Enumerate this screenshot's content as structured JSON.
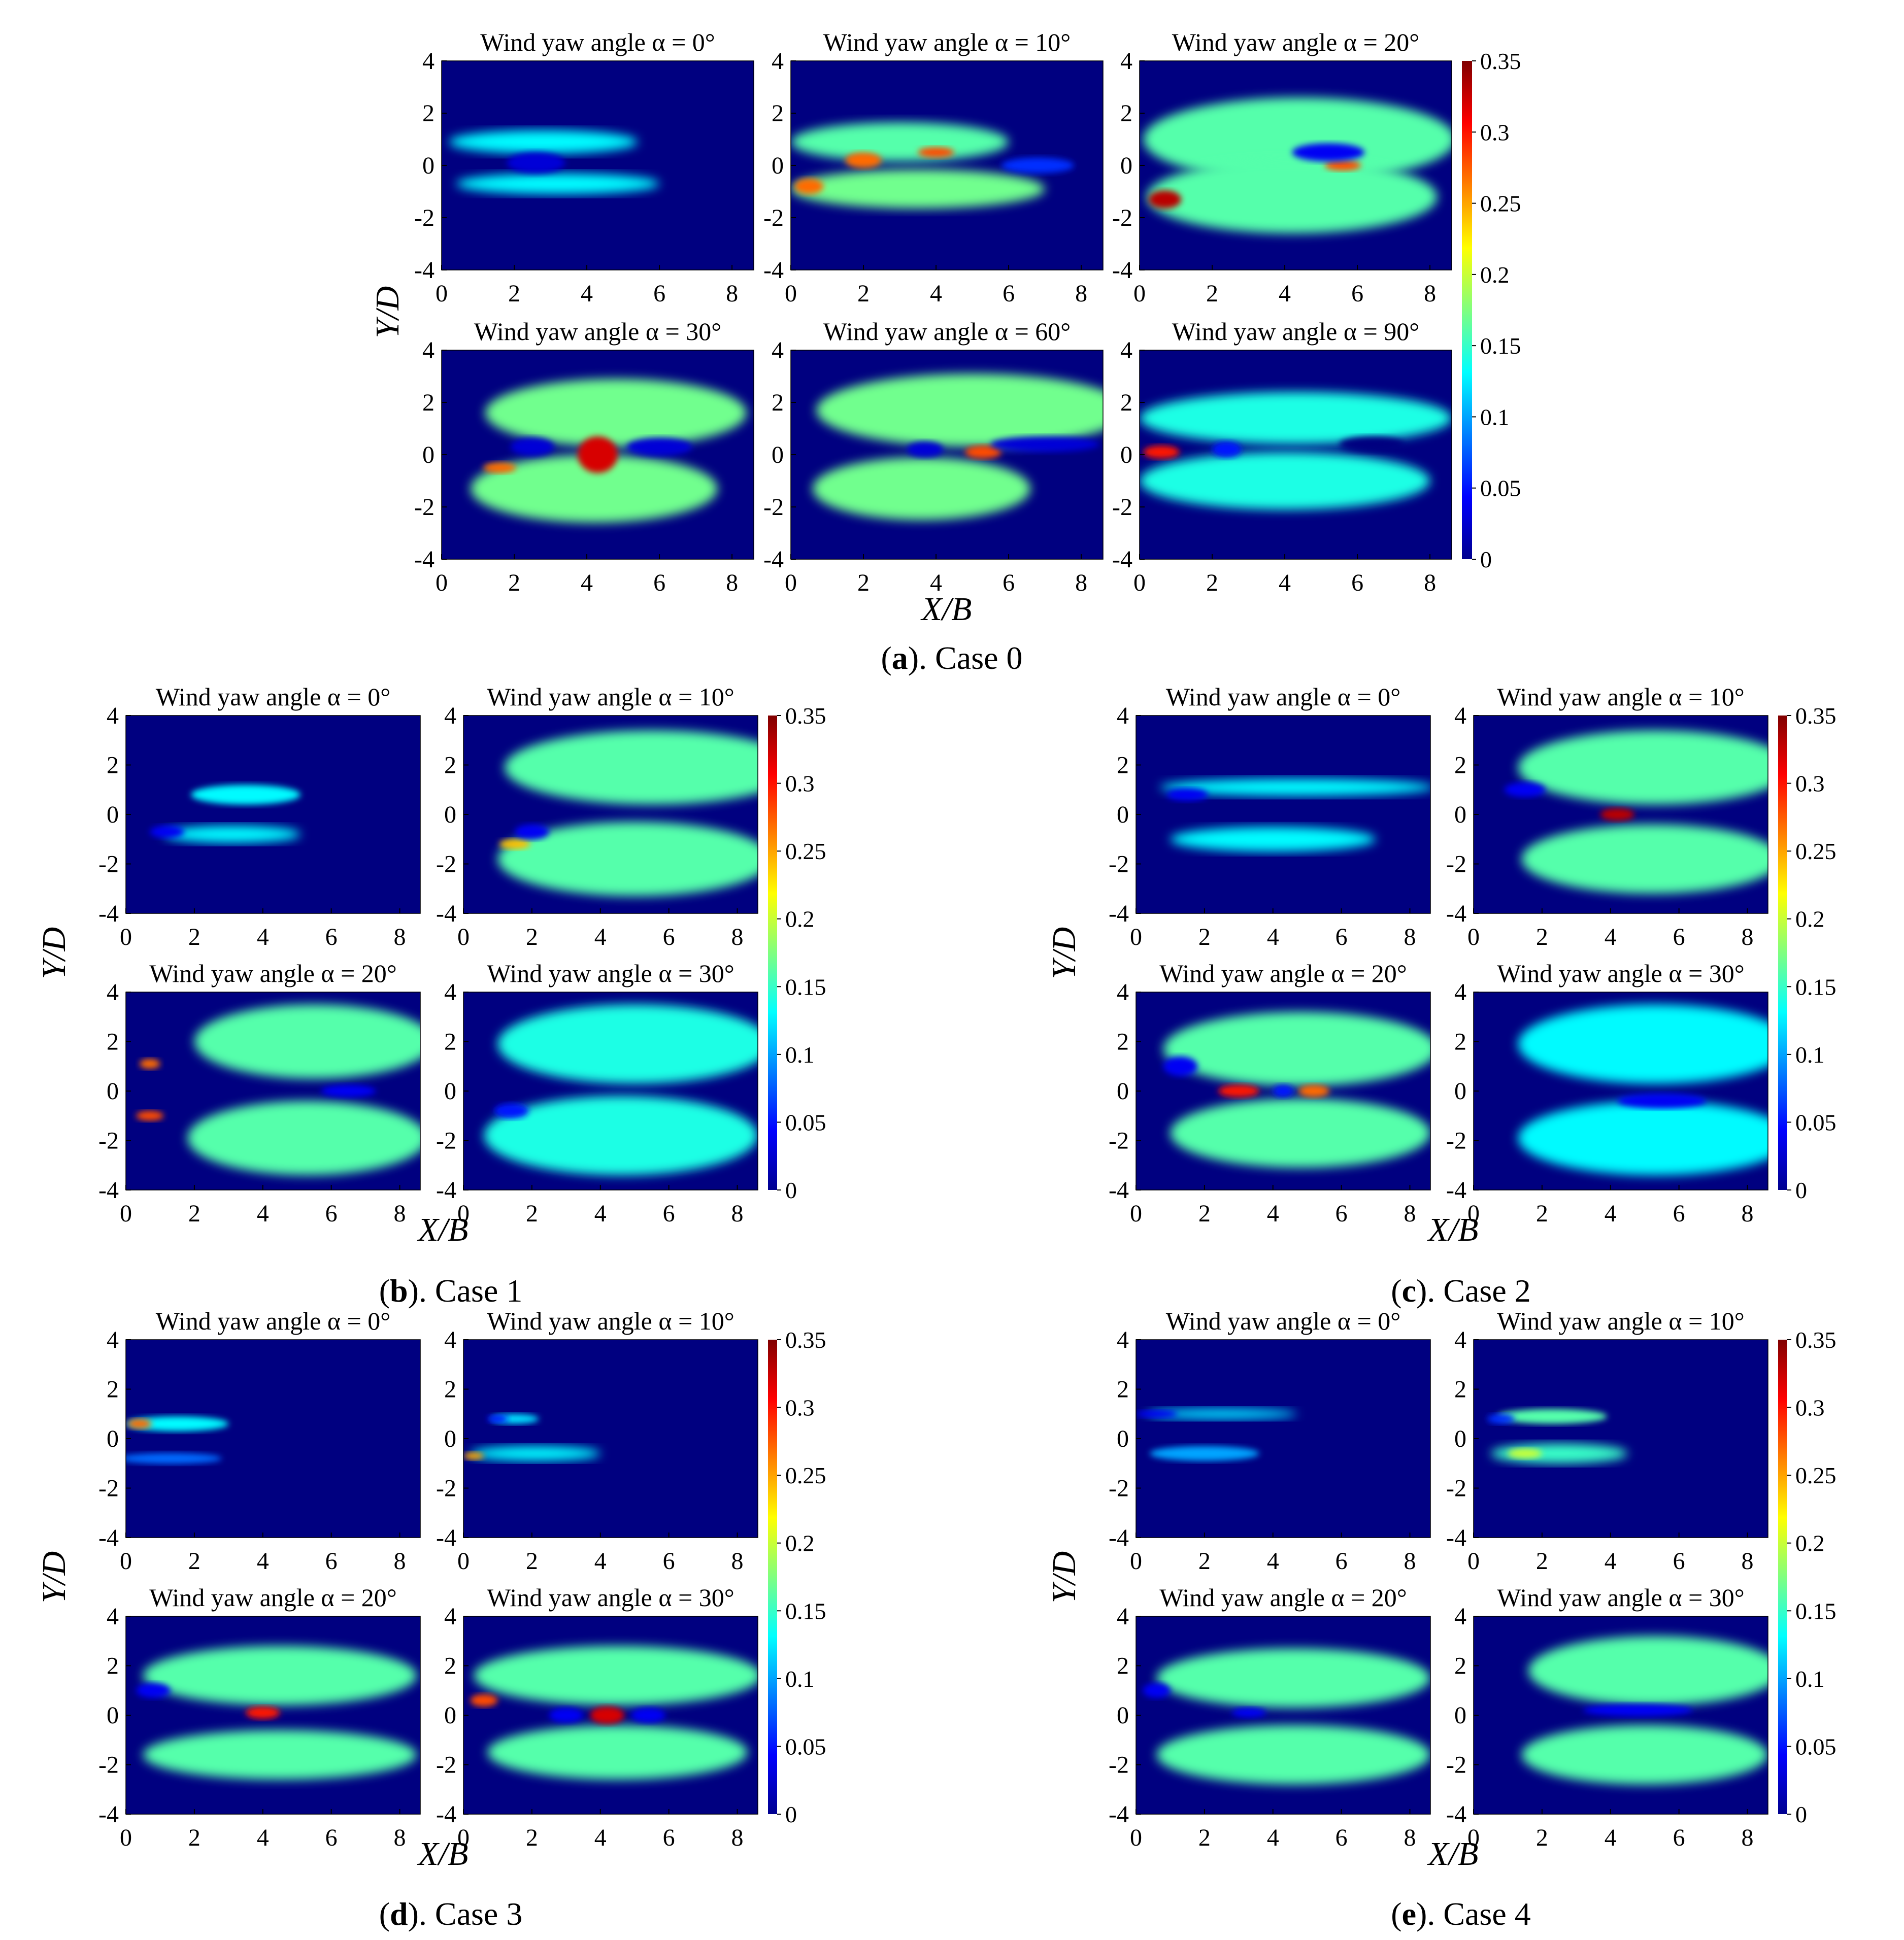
{
  "chart_data": {
    "type": "heatmap",
    "colormap": "jet",
    "value_range": [
      0,
      0.35
    ],
    "colorbar_ticks": [
      "0.35",
      "0.3",
      "0.25",
      "0.2",
      "0.15",
      "0.1",
      "0.05",
      "0"
    ],
    "panel_title_template": "Wind yaw angle α = {angle}°",
    "x_label": "X/B",
    "y_label": "Y/D",
    "xlim": [
      0,
      8.6
    ],
    "ylim": [
      -4,
      4
    ],
    "x_ticks": [
      "0",
      "2",
      "4",
      "6",
      "8"
    ],
    "y_ticks": [
      "4",
      "2",
      "0",
      "-2",
      "-4"
    ],
    "background_value": 0,
    "groups": [
      {
        "letter": "a",
        "caption_rest": "). Case 0",
        "panels": [
          {
            "angle": "0",
            "title": "Wind yaw angle α = 0°",
            "blobs": [
              {
                "x": 2.8,
                "y": 0.9,
                "rx": 2.6,
                "ry": 0.45,
                "v": 0.13
              },
              {
                "x": 3.2,
                "y": -0.7,
                "rx": 2.8,
                "ry": 0.4,
                "v": 0.13
              },
              {
                "x": 2.6,
                "y": 0.1,
                "rx": 0.8,
                "ry": 0.4,
                "v": 0.03
              }
            ]
          },
          {
            "angle": "10",
            "title": "Wind yaw angle α = 10°",
            "blobs": [
              {
                "x": 3.0,
                "y": 0.9,
                "rx": 3.0,
                "ry": 0.75,
                "v": 0.16
              },
              {
                "x": 3.5,
                "y": -0.9,
                "rx": 3.5,
                "ry": 0.75,
                "v": 0.17
              },
              {
                "x": 2.0,
                "y": 0.2,
                "rx": 0.5,
                "ry": 0.3,
                "v": 0.27
              },
              {
                "x": 4.0,
                "y": 0.5,
                "rx": 0.5,
                "ry": 0.2,
                "v": 0.28
              },
              {
                "x": 0.5,
                "y": -0.8,
                "rx": 0.4,
                "ry": 0.3,
                "v": 0.27
              },
              {
                "x": 6.8,
                "y": 0.0,
                "rx": 1.0,
                "ry": 0.3,
                "v": 0.06
              }
            ]
          },
          {
            "angle": "20",
            "title": "Wind yaw angle α = 20°",
            "blobs": [
              {
                "x": 4.4,
                "y": 1.0,
                "rx": 4.3,
                "ry": 1.6,
                "v": 0.16
              },
              {
                "x": 4.2,
                "y": -1.2,
                "rx": 4.0,
                "ry": 1.4,
                "v": 0.16
              },
              {
                "x": 0.7,
                "y": -1.3,
                "rx": 0.45,
                "ry": 0.35,
                "v": 0.33
              },
              {
                "x": 5.6,
                "y": 0.0,
                "rx": 0.5,
                "ry": 0.2,
                "v": 0.28
              },
              {
                "x": 5.2,
                "y": 0.5,
                "rx": 1.0,
                "ry": 0.35,
                "v": 0.04
              }
            ]
          },
          {
            "angle": "30",
            "title": "Wind yaw angle α = 30°",
            "blobs": [
              {
                "x": 4.8,
                "y": 1.6,
                "rx": 3.6,
                "ry": 1.3,
                "v": 0.17
              },
              {
                "x": 4.2,
                "y": -1.3,
                "rx": 3.4,
                "ry": 1.3,
                "v": 0.17
              },
              {
                "x": 4.3,
                "y": 0.0,
                "rx": 0.55,
                "ry": 0.7,
                "v": 0.32
              },
              {
                "x": 1.6,
                "y": -0.5,
                "rx": 0.45,
                "ry": 0.2,
                "v": 0.27
              },
              {
                "x": 2.5,
                "y": 0.3,
                "rx": 0.6,
                "ry": 0.35,
                "v": 0.03
              },
              {
                "x": 6.0,
                "y": 0.3,
                "rx": 0.9,
                "ry": 0.35,
                "v": 0.03
              }
            ]
          },
          {
            "angle": "60",
            "title": "Wind yaw angle α = 60°",
            "blobs": [
              {
                "x": 5.0,
                "y": 1.7,
                "rx": 4.3,
                "ry": 1.4,
                "v": 0.17
              },
              {
                "x": 3.6,
                "y": -1.3,
                "rx": 3.0,
                "ry": 1.2,
                "v": 0.17
              },
              {
                "x": 5.3,
                "y": 0.1,
                "rx": 0.5,
                "ry": 0.25,
                "v": 0.28
              },
              {
                "x": 3.7,
                "y": 0.2,
                "rx": 0.5,
                "ry": 0.3,
                "v": 0.03
              },
              {
                "x": 7.0,
                "y": 0.4,
                "rx": 1.5,
                "ry": 0.3,
                "v": 0.03
              }
            ]
          },
          {
            "angle": "90",
            "title": "Wind yaw angle α = 90°",
            "blobs": [
              {
                "x": 4.3,
                "y": 1.4,
                "rx": 4.3,
                "ry": 1.0,
                "v": 0.14
              },
              {
                "x": 4.0,
                "y": -1.0,
                "rx": 4.0,
                "ry": 1.1,
                "v": 0.14
              },
              {
                "x": 0.6,
                "y": 0.1,
                "rx": 0.5,
                "ry": 0.25,
                "v": 0.3
              },
              {
                "x": 2.4,
                "y": 0.2,
                "rx": 0.4,
                "ry": 0.3,
                "v": 0.05
              },
              {
                "x": 6.4,
                "y": 0.4,
                "rx": 0.9,
                "ry": 0.3,
                "v": 0.0
              }
            ]
          }
        ]
      },
      {
        "letter": "b",
        "caption_rest": "). Case 1",
        "panels": [
          {
            "angle": "0",
            "title": "Wind yaw angle α = 0°",
            "blobs": [
              {
                "x": 3.5,
                "y": 0.8,
                "rx": 1.6,
                "ry": 0.4,
                "v": 0.13
              },
              {
                "x": 3.1,
                "y": -0.8,
                "rx": 2.0,
                "ry": 0.35,
                "v": 0.13
              },
              {
                "x": 1.2,
                "y": -0.7,
                "rx": 0.5,
                "ry": 0.25,
                "v": 0.04
              }
            ]
          },
          {
            "angle": "10",
            "title": "Wind yaw angle α = 10°",
            "blobs": [
              {
                "x": 5.5,
                "y": 1.9,
                "rx": 4.3,
                "ry": 1.5,
                "v": 0.16
              },
              {
                "x": 5.0,
                "y": -1.8,
                "rx": 4.0,
                "ry": 1.5,
                "v": 0.16
              },
              {
                "x": 1.5,
                "y": -1.2,
                "rx": 0.45,
                "ry": 0.2,
                "v": 0.24
              },
              {
                "x": 2.0,
                "y": -0.7,
                "rx": 0.5,
                "ry": 0.3,
                "v": 0.04
              }
            ]
          },
          {
            "angle": "20",
            "title": "Wind yaw angle α = 20°",
            "blobs": [
              {
                "x": 5.5,
                "y": 2.0,
                "rx": 3.5,
                "ry": 1.5,
                "v": 0.16
              },
              {
                "x": 5.3,
                "y": -1.9,
                "rx": 3.5,
                "ry": 1.5,
                "v": 0.16
              },
              {
                "x": 0.7,
                "y": 1.1,
                "rx": 0.3,
                "ry": 0.2,
                "v": 0.27
              },
              {
                "x": 0.7,
                "y": -1.0,
                "rx": 0.4,
                "ry": 0.2,
                "v": 0.28
              },
              {
                "x": 6.5,
                "y": 0.0,
                "rx": 0.8,
                "ry": 0.25,
                "v": 0.04
              }
            ]
          },
          {
            "angle": "30",
            "title": "Wind yaw angle α = 30°",
            "blobs": [
              {
                "x": 5.0,
                "y": 1.9,
                "rx": 4.0,
                "ry": 1.6,
                "v": 0.14
              },
              {
                "x": 4.6,
                "y": -1.8,
                "rx": 4.0,
                "ry": 1.6,
                "v": 0.14
              },
              {
                "x": 1.4,
                "y": -0.8,
                "rx": 0.5,
                "ry": 0.3,
                "v": 0.05
              }
            ]
          }
        ]
      },
      {
        "letter": "c",
        "caption_rest": "). Case 2",
        "panels": [
          {
            "angle": "0",
            "title": "Wind yaw angle α = 0°",
            "blobs": [
              {
                "x": 4.7,
                "y": 1.1,
                "rx": 4.0,
                "ry": 0.35,
                "v": 0.13
              },
              {
                "x": 4.0,
                "y": -1.0,
                "rx": 3.0,
                "ry": 0.5,
                "v": 0.13
              },
              {
                "x": 1.5,
                "y": 0.8,
                "rx": 0.6,
                "ry": 0.25,
                "v": 0.04
              }
            ]
          },
          {
            "angle": "10",
            "title": "Wind yaw angle α = 10°",
            "blobs": [
              {
                "x": 5.3,
                "y": 1.9,
                "rx": 4.0,
                "ry": 1.5,
                "v": 0.16
              },
              {
                "x": 5.2,
                "y": -1.8,
                "rx": 3.8,
                "ry": 1.4,
                "v": 0.16
              },
              {
                "x": 4.2,
                "y": 0.0,
                "rx": 0.5,
                "ry": 0.25,
                "v": 0.33
              },
              {
                "x": 1.5,
                "y": 1.0,
                "rx": 0.6,
                "ry": 0.3,
                "v": 0.04
              }
            ]
          },
          {
            "angle": "20",
            "title": "Wind yaw angle α = 20°",
            "blobs": [
              {
                "x": 4.8,
                "y": 1.7,
                "rx": 4.0,
                "ry": 1.5,
                "v": 0.16
              },
              {
                "x": 4.8,
                "y": -1.7,
                "rx": 3.8,
                "ry": 1.4,
                "v": 0.16
              },
              {
                "x": 3.0,
                "y": 0.0,
                "rx": 0.6,
                "ry": 0.25,
                "v": 0.3
              },
              {
                "x": 5.2,
                "y": 0.0,
                "rx": 0.45,
                "ry": 0.25,
                "v": 0.27
              },
              {
                "x": 4.3,
                "y": 0.0,
                "rx": 0.3,
                "ry": 0.25,
                "v": 0.05
              },
              {
                "x": 1.3,
                "y": 1.0,
                "rx": 0.5,
                "ry": 0.4,
                "v": 0.04
              }
            ]
          },
          {
            "angle": "30",
            "title": "Wind yaw angle α = 30°",
            "blobs": [
              {
                "x": 5.3,
                "y": 1.9,
                "rx": 4.0,
                "ry": 1.6,
                "v": 0.13
              },
              {
                "x": 5.3,
                "y": -1.9,
                "rx": 4.0,
                "ry": 1.5,
                "v": 0.13
              },
              {
                "x": 5.5,
                "y": -0.4,
                "rx": 1.3,
                "ry": 0.3,
                "v": 0.04
              }
            ]
          }
        ]
      },
      {
        "letter": "d",
        "caption_rest": "). Case 3",
        "panels": [
          {
            "angle": "0",
            "title": "Wind yaw angle α = 0°",
            "blobs": [
              {
                "x": 1.5,
                "y": 0.6,
                "rx": 1.5,
                "ry": 0.3,
                "v": 0.13
              },
              {
                "x": 1.3,
                "y": -0.8,
                "rx": 1.5,
                "ry": 0.22,
                "v": 0.08
              },
              {
                "x": 0.4,
                "y": 0.6,
                "rx": 0.35,
                "ry": 0.2,
                "v": 0.27
              }
            ]
          },
          {
            "angle": "10",
            "title": "Wind yaw angle α = 10°",
            "blobs": [
              {
                "x": 1.5,
                "y": 0.8,
                "rx": 0.7,
                "ry": 0.2,
                "v": 0.12
              },
              {
                "x": 2.1,
                "y": -0.6,
                "rx": 1.9,
                "ry": 0.3,
                "v": 0.13
              },
              {
                "x": 0.3,
                "y": -0.7,
                "rx": 0.3,
                "ry": 0.15,
                "v": 0.25
              },
              {
                "x": 1.0,
                "y": 0.8,
                "rx": 0.3,
                "ry": 0.15,
                "v": 0.05
              }
            ]
          },
          {
            "angle": "20",
            "title": "Wind yaw angle α = 20°",
            "blobs": [
              {
                "x": 4.5,
                "y": 1.6,
                "rx": 4.0,
                "ry": 1.2,
                "v": 0.16
              },
              {
                "x": 4.5,
                "y": -1.6,
                "rx": 4.0,
                "ry": 1.0,
                "v": 0.16
              },
              {
                "x": 4.0,
                "y": 0.1,
                "rx": 0.5,
                "ry": 0.25,
                "v": 0.3
              },
              {
                "x": 0.8,
                "y": 1.0,
                "rx": 0.5,
                "ry": 0.3,
                "v": 0.04
              }
            ]
          },
          {
            "angle": "30",
            "title": "Wind yaw angle α = 30°",
            "blobs": [
              {
                "x": 4.5,
                "y": 1.6,
                "rx": 4.2,
                "ry": 1.2,
                "v": 0.16
              },
              {
                "x": 4.5,
                "y": -1.5,
                "rx": 3.8,
                "ry": 1.1,
                "v": 0.16
              },
              {
                "x": 4.2,
                "y": 0.0,
                "rx": 0.5,
                "ry": 0.35,
                "v": 0.32
              },
              {
                "x": 0.6,
                "y": 0.6,
                "rx": 0.4,
                "ry": 0.25,
                "v": 0.28
              },
              {
                "x": 3.0,
                "y": 0.0,
                "rx": 0.5,
                "ry": 0.3,
                "v": 0.04
              },
              {
                "x": 5.4,
                "y": 0.0,
                "rx": 0.5,
                "ry": 0.3,
                "v": 0.04
              }
            ]
          }
        ]
      },
      {
        "letter": "e",
        "caption_rest": "). Case 4",
        "panels": [
          {
            "angle": "0",
            "title": "Wind yaw angle α = 0°",
            "blobs": [
              {
                "x": 2.5,
                "y": 1.0,
                "rx": 2.2,
                "ry": 0.22,
                "v": 0.12
              },
              {
                "x": 2.0,
                "y": -0.6,
                "rx": 1.6,
                "ry": 0.3,
                "v": 0.1
              },
              {
                "x": 0.6,
                "y": 1.0,
                "rx": 0.6,
                "ry": 0.15,
                "v": 0.04
              }
            ]
          },
          {
            "angle": "10",
            "title": "Wind yaw angle α = 10°",
            "blobs": [
              {
                "x": 2.3,
                "y": 0.9,
                "rx": 1.6,
                "ry": 0.3,
                "v": 0.16
              },
              {
                "x": 2.5,
                "y": -0.6,
                "rx": 2.0,
                "ry": 0.4,
                "v": 0.15
              },
              {
                "x": 1.5,
                "y": -0.6,
                "rx": 0.5,
                "ry": 0.2,
                "v": 0.2
              },
              {
                "x": 0.8,
                "y": 0.8,
                "rx": 0.4,
                "ry": 0.2,
                "v": 0.06
              }
            ]
          },
          {
            "angle": "20",
            "title": "Wind yaw angle α = 20°",
            "blobs": [
              {
                "x": 4.6,
                "y": 1.5,
                "rx": 4.0,
                "ry": 1.2,
                "v": 0.16
              },
              {
                "x": 4.6,
                "y": -1.6,
                "rx": 4.0,
                "ry": 1.2,
                "v": 0.16
              },
              {
                "x": 3.3,
                "y": 0.1,
                "rx": 0.5,
                "ry": 0.2,
                "v": 0.04
              },
              {
                "x": 0.6,
                "y": 1.0,
                "rx": 0.4,
                "ry": 0.3,
                "v": 0.04
              }
            ]
          },
          {
            "angle": "30",
            "title": "Wind yaw angle α = 30°",
            "blobs": [
              {
                "x": 5.3,
                "y": 1.8,
                "rx": 3.7,
                "ry": 1.4,
                "v": 0.16
              },
              {
                "x": 5.0,
                "y": -1.6,
                "rx": 3.6,
                "ry": 1.2,
                "v": 0.16
              },
              {
                "x": 4.8,
                "y": 0.2,
                "rx": 1.6,
                "ry": 0.25,
                "v": 0.04
              }
            ]
          }
        ]
      }
    ]
  }
}
